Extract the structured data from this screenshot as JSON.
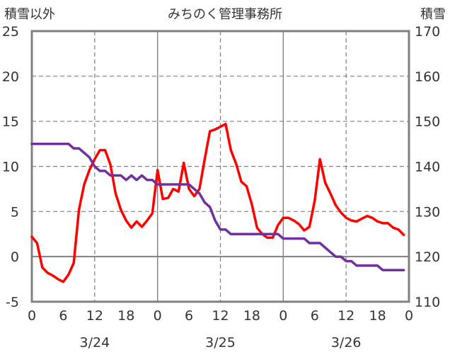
{
  "chart_data": {
    "type": "line",
    "title": "みちのく管理事務所",
    "left_axis_label": "積雪以外",
    "right_axis_label": "積雪",
    "x_ticks": [
      "0",
      "6",
      "12",
      "18",
      "0",
      "6",
      "12",
      "18",
      "0",
      "6",
      "12",
      "18",
      "0"
    ],
    "date_labels": [
      {
        "label": "3/24",
        "hour": 12
      },
      {
        "label": "3/25",
        "hour": 36
      },
      {
        "label": "3/26",
        "hour": 60
      }
    ],
    "x_range_hours": [
      0,
      72
    ],
    "y_left": {
      "range": [
        -5,
        25
      ],
      "ticks": [
        "-5",
        "0",
        "5",
        "10",
        "15",
        "20",
        "25"
      ]
    },
    "y_right": {
      "range": [
        110,
        170
      ],
      "ticks": [
        "110",
        "120",
        "130",
        "140",
        "150",
        "160",
        "170"
      ]
    },
    "grid": "dashed",
    "colors": {
      "non_snow": "#ff0000",
      "snow": "#7030a0",
      "axis": "#808080",
      "grid": "#808080",
      "text": "#333333"
    },
    "series": [
      {
        "key": "non_snow",
        "axis": "left",
        "x": [
          0,
          1,
          2,
          3,
          4,
          5,
          6,
          7,
          8,
          9,
          10,
          11,
          12,
          13,
          14,
          15,
          16,
          17,
          18,
          19,
          20,
          21,
          22,
          23,
          24,
          25,
          26,
          27,
          28,
          29,
          30,
          31,
          32,
          33,
          34,
          35,
          36,
          37,
          38,
          39,
          40,
          41,
          42,
          43,
          44,
          45,
          46,
          47,
          48,
          49,
          50,
          51,
          52,
          53,
          54,
          55,
          56,
          57,
          58,
          59,
          60,
          61,
          62,
          63,
          64,
          65,
          66,
          67,
          68,
          69,
          70,
          71
        ],
        "values": [
          2.2,
          1.5,
          -1.2,
          -1.8,
          -2.1,
          -2.5,
          -2.8,
          -2,
          -0.7,
          5.2,
          8,
          9.6,
          10.8,
          11.8,
          11.8,
          10.2,
          7,
          5.2,
          4,
          3.2,
          3.9,
          3.3,
          4,
          4.8,
          9.6,
          6.4,
          6.5,
          7.5,
          7.2,
          10.4,
          7.5,
          6.7,
          7.5,
          10.8,
          13.9,
          14.1,
          14.4,
          14.7,
          11.8,
          10.3,
          8.3,
          7.8,
          5.8,
          3.2,
          2.5,
          2.1,
          2.1,
          3.5,
          4.3,
          4.3,
          4,
          3.6,
          2.9,
          3.3,
          6.2,
          10.8,
          8.2,
          7,
          5.7,
          4.9,
          4.3,
          4,
          3.9,
          4.2,
          4.5,
          4.3,
          3.9,
          3.7,
          3.7,
          3.2,
          3,
          2.4
        ]
      },
      {
        "key": "snow",
        "axis": "right",
        "x": [
          0,
          1,
          2,
          3,
          4,
          5,
          6,
          7,
          8,
          9,
          10,
          11,
          12,
          13,
          14,
          15,
          16,
          17,
          18,
          19,
          20,
          21,
          22,
          23,
          24,
          25,
          26,
          27,
          28,
          29,
          30,
          31,
          32,
          33,
          34,
          35,
          36,
          37,
          38,
          39,
          40,
          41,
          42,
          43,
          44,
          45,
          46,
          47,
          48,
          49,
          50,
          51,
          52,
          53,
          54,
          55,
          56,
          57,
          58,
          59,
          60,
          61,
          62,
          63,
          64,
          65,
          66,
          67,
          68,
          69,
          70,
          71
        ],
        "values": [
          145,
          145,
          145,
          145,
          145,
          145,
          145,
          145,
          144,
          144,
          143,
          142,
          140,
          139,
          139,
          138,
          138,
          138,
          137,
          138,
          137,
          138,
          137,
          137,
          136,
          136,
          136,
          136,
          136,
          136,
          136,
          135,
          134,
          132,
          131,
          128,
          126,
          126,
          125,
          125,
          125,
          125,
          125,
          125,
          125,
          125,
          125,
          125,
          124,
          124,
          124,
          124,
          124,
          123,
          123,
          123,
          122,
          121,
          120,
          120,
          119,
          119,
          118,
          118,
          118,
          118,
          118,
          117,
          117,
          117,
          117,
          117
        ]
      }
    ]
  }
}
